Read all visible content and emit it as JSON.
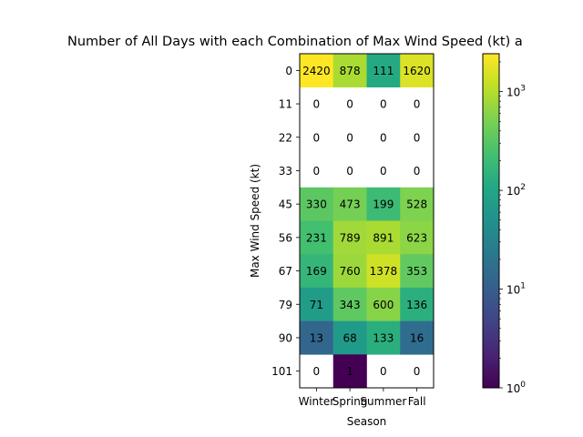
{
  "chart_data": {
    "type": "heatmap",
    "title": "Number of All Days with each Combination of Max Wind Speed (kt) a",
    "xlabel": "Season",
    "ylabel": "Max Wind Speed (kt)",
    "x_categories": [
      "Winter",
      "Spring",
      "Summer",
      "Fall"
    ],
    "y_categories": [
      "0",
      "11",
      "22",
      "33",
      "45",
      "56",
      "67",
      "79",
      "90",
      "101"
    ],
    "values": [
      [
        2420,
        878,
        111,
        1620
      ],
      [
        0,
        0,
        0,
        0
      ],
      [
        0,
        0,
        0,
        0
      ],
      [
        0,
        0,
        0,
        0
      ],
      [
        330,
        473,
        199,
        528
      ],
      [
        231,
        789,
        891,
        623
      ],
      [
        169,
        760,
        1378,
        353
      ],
      [
        71,
        343,
        600,
        136
      ],
      [
        13,
        68,
        133,
        16
      ],
      [
        0,
        1,
        0,
        0
      ]
    ],
    "zero_cells_blank": true,
    "colormap": "viridis",
    "color_scale": "log",
    "colorbar": {
      "range": [
        1,
        2420
      ],
      "tick_labels": [
        {
          "base": "10",
          "exp": "0",
          "value": 1
        },
        {
          "base": "10",
          "exp": "1",
          "value": 10
        },
        {
          "base": "10",
          "exp": "2",
          "value": 100
        },
        {
          "base": "10",
          "exp": "3",
          "value": 1000
        }
      ]
    }
  }
}
